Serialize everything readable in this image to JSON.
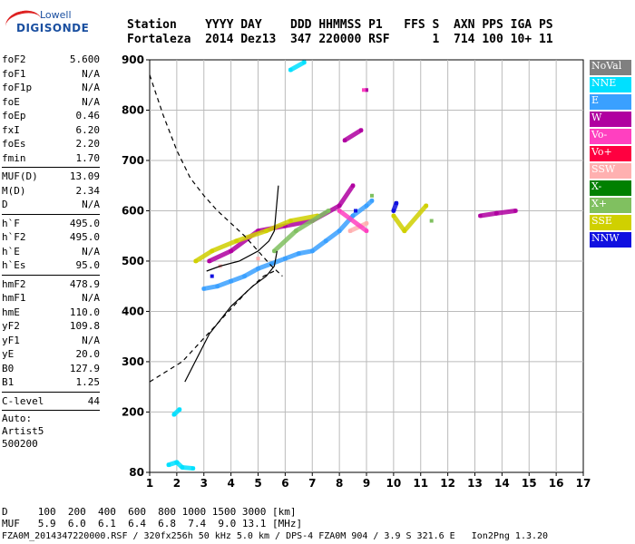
{
  "logo": {
    "line1": "Lowell",
    "line2": "DIGISONDE"
  },
  "header": {
    "line1": "Station    YYYY DAY    DDD HHMMSS P1   FFS S  AXN PPS IGA PS",
    "line2": "Fortaleza  2014 Dez13  347 220000 RSF      1  714 100 10+ 11"
  },
  "params": {
    "group1": [
      {
        "k": "foF2",
        "v": "5.600"
      },
      {
        "k": "foF1",
        "v": "N/A"
      },
      {
        "k": "foF1p",
        "v": "N/A"
      },
      {
        "k": "foE",
        "v": "N/A"
      },
      {
        "k": "foEp",
        "v": "0.46"
      },
      {
        "k": "fxI",
        "v": "6.20"
      },
      {
        "k": "foEs",
        "v": "2.20"
      },
      {
        "k": "fmin",
        "v": "1.70"
      }
    ],
    "group2": [
      {
        "k": "MUF(D)",
        "v": "13.09"
      },
      {
        "k": "M(D)",
        "v": "2.34"
      },
      {
        "k": "D",
        "v": "N/A"
      }
    ],
    "group3": [
      {
        "k": "h`F",
        "v": "495.0"
      },
      {
        "k": "h`F2",
        "v": "495.0"
      },
      {
        "k": "h`E",
        "v": "N/A"
      },
      {
        "k": "h`Es",
        "v": "95.0"
      }
    ],
    "group4": [
      {
        "k": "hmF2",
        "v": "478.9"
      },
      {
        "k": "hmF1",
        "v": "N/A"
      },
      {
        "k": "hmE",
        "v": "110.0"
      },
      {
        "k": "yF2",
        "v": "109.8"
      },
      {
        "k": "yF1",
        "v": "N/A"
      },
      {
        "k": "yE",
        "v": "20.0"
      },
      {
        "k": "B0",
        "v": "127.9"
      },
      {
        "k": "B1",
        "v": "1.25"
      }
    ],
    "group5": [
      {
        "k": "C-level",
        "v": "44"
      }
    ],
    "auto": [
      "Auto:",
      "Artist5",
      "500200"
    ]
  },
  "legend": [
    {
      "label": "NoVal",
      "color": "#808080"
    },
    {
      "label": "NNE",
      "color": "#00e0ff"
    },
    {
      "label": "E",
      "color": "#3aa0ff"
    },
    {
      "label": "W",
      "color": "#b000a0"
    },
    {
      "label": "Vo-",
      "color": "#ff40c0"
    },
    {
      "label": "Vo+",
      "color": "#ff0040"
    },
    {
      "label": "SSW",
      "color": "#ffb0b0"
    },
    {
      "label": "X-",
      "color": "#008000"
    },
    {
      "label": "X+",
      "color": "#80c060"
    },
    {
      "label": "SSE",
      "color": "#d0d000"
    },
    {
      "label": "NNW",
      "color": "#1010e0"
    }
  ],
  "footer": {
    "line1": "D     100  200  400  600  800 1000 1500 3000 [km]",
    "line2": "MUF   5.9  6.0  6.1  6.4  6.8  7.4  9.0 13.1 [MHz]",
    "line3": "FZA0M_2014347220000.RSF / 320fx256h 50 kHz 5.0 km / DPS-4 FZA0M 904 / 3.9 S 321.6 E   Ion2Png 1.3.20"
  },
  "chart_data": {
    "type": "scatter",
    "xlim": [
      1,
      17
    ],
    "ylim": [
      80,
      900
    ],
    "x_ticks": [
      1,
      2,
      3,
      4,
      5,
      6,
      7,
      8,
      9,
      10,
      11,
      12,
      13,
      14,
      15,
      16,
      17
    ],
    "y_ticks": [
      80,
      200,
      300,
      400,
      500,
      600,
      700,
      800,
      900
    ],
    "grid": true,
    "traces": [
      {
        "name": "E",
        "color": "#3aa0ff",
        "points": [
          [
            3.0,
            445
          ],
          [
            3.5,
            450
          ],
          [
            4.0,
            460
          ],
          [
            4.5,
            470
          ],
          [
            5.0,
            485
          ],
          [
            5.5,
            495
          ],
          [
            6.0,
            505
          ],
          [
            6.5,
            515
          ],
          [
            7.0,
            520
          ],
          [
            7.5,
            540
          ],
          [
            8.0,
            560
          ],
          [
            8.5,
            590
          ],
          [
            9.0,
            610
          ],
          [
            9.2,
            620
          ]
        ]
      },
      {
        "name": "W",
        "color": "#b000a0",
        "points": [
          [
            3.2,
            500
          ],
          [
            4.0,
            520
          ],
          [
            5.0,
            560
          ],
          [
            6.0,
            570
          ],
          [
            7.0,
            580
          ],
          [
            8.0,
            610
          ],
          [
            8.5,
            650
          ],
          [
            8.2,
            740
          ],
          [
            8.8,
            760
          ],
          [
            9.0,
            840
          ],
          [
            13.2,
            590
          ],
          [
            13.8,
            595
          ],
          [
            14.5,
            600
          ]
        ]
      },
      {
        "name": "SSE",
        "color": "#d0d000",
        "points": [
          [
            2.7,
            500
          ],
          [
            3.3,
            520
          ],
          [
            4.2,
            540
          ],
          [
            5.3,
            560
          ],
          [
            6.2,
            580
          ],
          [
            7.2,
            590
          ],
          [
            10.0,
            590
          ],
          [
            10.4,
            560
          ],
          [
            11.2,
            610
          ]
        ]
      },
      {
        "name": "NNE",
        "color": "#00e0ff",
        "points": [
          [
            1.7,
            95
          ],
          [
            2.0,
            100
          ],
          [
            2.2,
            90
          ],
          [
            2.6,
            88
          ],
          [
            1.9,
            195
          ],
          [
            2.1,
            205
          ],
          [
            6.2,
            880
          ],
          [
            6.7,
            895
          ]
        ]
      },
      {
        "name": "X+",
        "color": "#80c060",
        "points": [
          [
            5.6,
            520
          ],
          [
            6.4,
            560
          ],
          [
            7.6,
            600
          ],
          [
            9.2,
            630
          ],
          [
            11.4,
            580
          ]
        ]
      },
      {
        "name": "SSW",
        "color": "#ffb0b0",
        "points": [
          [
            3.6,
            490
          ],
          [
            5.0,
            505
          ],
          [
            8.4,
            560
          ],
          [
            9.0,
            575
          ]
        ]
      },
      {
        "name": "NNW",
        "color": "#1010e0",
        "points": [
          [
            3.3,
            470
          ],
          [
            8.6,
            600
          ],
          [
            10.0,
            600
          ],
          [
            10.1,
            615
          ]
        ]
      },
      {
        "name": "Vo-",
        "color": "#ff40c0",
        "points": [
          [
            8.0,
            600
          ],
          [
            9.0,
            560
          ],
          [
            8.9,
            840
          ]
        ]
      }
    ],
    "curves": [
      {
        "style": "solid",
        "points": [
          [
            2.3,
            260
          ],
          [
            3.2,
            355
          ],
          [
            4.0,
            410
          ],
          [
            4.8,
            450
          ],
          [
            5.3,
            470
          ],
          [
            5.6,
            490
          ],
          [
            5.7,
            520
          ]
        ]
      },
      {
        "style": "solid",
        "points": [
          [
            3.1,
            480
          ],
          [
            3.6,
            490
          ],
          [
            4.3,
            500
          ],
          [
            5.0,
            520
          ],
          [
            5.4,
            540
          ],
          [
            5.6,
            560
          ],
          [
            5.75,
            650
          ]
        ]
      },
      {
        "style": "dashed",
        "points": [
          [
            1.0,
            870
          ],
          [
            1.5,
            790
          ],
          [
            2.0,
            720
          ],
          [
            2.5,
            665
          ],
          [
            3.0,
            630
          ],
          [
            3.5,
            600
          ],
          [
            4.0,
            575
          ],
          [
            4.5,
            550
          ],
          [
            5.0,
            520
          ],
          [
            5.5,
            490
          ],
          [
            5.9,
            470
          ]
        ]
      },
      {
        "style": "dashed",
        "points": [
          [
            1.0,
            260
          ],
          [
            1.6,
            280
          ],
          [
            2.2,
            300
          ],
          [
            2.8,
            335
          ],
          [
            3.4,
            370
          ],
          [
            4.0,
            405
          ],
          [
            4.6,
            440
          ],
          [
            5.2,
            470
          ],
          [
            5.6,
            480
          ]
        ]
      }
    ]
  }
}
